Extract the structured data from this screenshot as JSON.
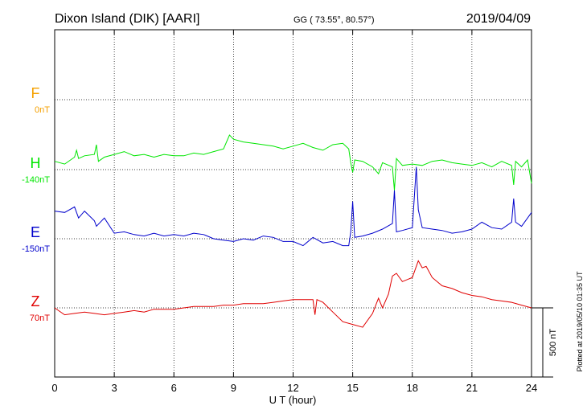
{
  "header": {
    "station": "Dixon Island (DIK)  [AARI]",
    "coords": "GG ( 73.55°,  80.57°)",
    "date": "2019/04/09"
  },
  "footer": {
    "plotted": "Plotted at 2019/05/10 01:35 UT"
  },
  "colors": {
    "F": "#f5a000",
    "H": "#00e600",
    "E": "#0000cc",
    "Z": "#e00000"
  },
  "chart_data": {
    "type": "line",
    "xlabel": "U T (hour)",
    "xlim": [
      0,
      24
    ],
    "xticks": [
      "0",
      "3",
      "6",
      "9",
      "12",
      "15",
      "18",
      "21",
      "24"
    ],
    "scale_label": "500 nT",
    "series": [
      {
        "name": "F",
        "baseline": "0nT",
        "offset_nT": 500,
        "x": [],
        "y": []
      },
      {
        "name": "H",
        "baseline": "-140nT",
        "x": [
          0,
          0.5,
          1,
          1.1,
          1.2,
          1.5,
          2,
          2.1,
          2.2,
          2.5,
          3,
          3.5,
          4,
          4.5,
          5,
          5.5,
          6,
          6.5,
          7,
          7.5,
          8,
          8.5,
          8.8,
          9,
          9.5,
          10,
          10.5,
          11,
          11.5,
          12,
          12.5,
          13,
          13.5,
          14,
          14.5,
          14.8,
          14.9,
          15,
          15.1,
          15.5,
          16,
          16.3,
          16.5,
          17,
          17.1,
          17.2,
          17.5,
          18,
          18.5,
          19,
          19.5,
          20,
          20.5,
          21,
          21.5,
          22,
          22.5,
          23,
          23.1,
          23.2,
          23.5,
          23.8,
          24
        ],
        "y": [
          60,
          40,
          90,
          140,
          80,
          100,
          110,
          180,
          60,
          90,
          110,
          130,
          100,
          110,
          90,
          110,
          100,
          100,
          120,
          110,
          130,
          150,
          250,
          220,
          200,
          190,
          180,
          170,
          150,
          170,
          190,
          160,
          140,
          180,
          190,
          150,
          50,
          -20,
          70,
          60,
          20,
          -30,
          50,
          20,
          -150,
          80,
          30,
          40,
          30,
          60,
          70,
          50,
          40,
          30,
          50,
          20,
          60,
          30,
          -110,
          60,
          20,
          70,
          -100
        ]
      },
      {
        "name": "E",
        "baseline": "-150nT",
        "x": [
          0,
          0.5,
          1,
          1.2,
          1.5,
          2,
          2.1,
          2.5,
          3,
          3.5,
          4,
          4.5,
          5,
          5.5,
          6,
          6.5,
          7,
          7.5,
          8,
          8.5,
          9,
          9.5,
          10,
          10.5,
          11,
          11.5,
          12,
          12.5,
          13,
          13.5,
          14,
          14.5,
          14.8,
          14.9,
          15,
          15.1,
          15.5,
          16,
          16.5,
          17,
          17.1,
          17.2,
          17.5,
          18,
          18.2,
          18.3,
          18.5,
          19,
          19.5,
          20,
          20.5,
          21,
          21.5,
          22,
          22.5,
          23,
          23.1,
          23.2,
          23.5,
          23.8,
          24
        ],
        "y": [
          200,
          190,
          230,
          150,
          200,
          130,
          90,
          150,
          40,
          50,
          30,
          20,
          40,
          20,
          30,
          20,
          40,
          30,
          0,
          -10,
          -20,
          0,
          -10,
          20,
          10,
          -20,
          -20,
          -50,
          10,
          -30,
          -20,
          -50,
          -50,
          50,
          270,
          10,
          20,
          40,
          70,
          110,
          350,
          50,
          60,
          80,
          520,
          210,
          80,
          70,
          60,
          40,
          50,
          70,
          120,
          80,
          70,
          120,
          290,
          120,
          90,
          150,
          190
        ]
      },
      {
        "name": "Z",
        "baseline": "70nT",
        "x": [
          0,
          0.5,
          1,
          1.5,
          2,
          2.5,
          3,
          3.5,
          4,
          4.5,
          5,
          5.5,
          6,
          6.5,
          7,
          7.5,
          8,
          8.5,
          9,
          9.5,
          10,
          10.5,
          11,
          11.5,
          12,
          12.5,
          13,
          13.1,
          13.2,
          13.5,
          14,
          14.5,
          15,
          15.5,
          16,
          16.3,
          16.5,
          16.8,
          17,
          17.2,
          17.5,
          18,
          18.3,
          18.5,
          18.7,
          19,
          19.5,
          20,
          20.5,
          21,
          21.5,
          22,
          22.5,
          23,
          23.5,
          24
        ],
        "y": [
          0,
          -50,
          -40,
          -30,
          -40,
          -50,
          -40,
          -30,
          -20,
          -30,
          -10,
          -10,
          -10,
          0,
          10,
          10,
          10,
          20,
          20,
          30,
          30,
          30,
          40,
          50,
          60,
          60,
          60,
          -50,
          60,
          40,
          -30,
          -100,
          -120,
          -140,
          -40,
          70,
          0,
          100,
          230,
          250,
          190,
          220,
          340,
          290,
          300,
          220,
          160,
          140,
          110,
          90,
          80,
          60,
          50,
          40,
          20,
          0
        ]
      }
    ]
  }
}
